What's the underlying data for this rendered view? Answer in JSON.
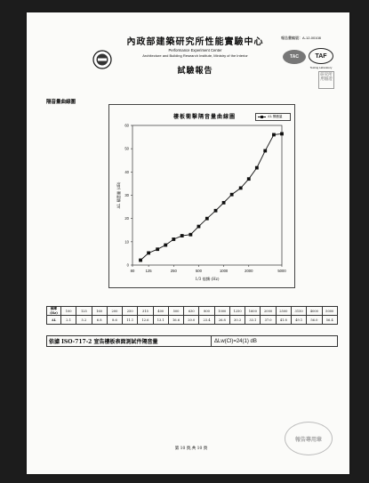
{
  "header": {
    "title": "內政部建築研究所性能實驗中心",
    "subtitle_en_1": "Performance Experiment Center",
    "subtitle_en_2": "Architecture and Building Research Institute, Ministry of the Interior",
    "report_title": "試驗報告",
    "report_no": "報告書編號：A-12-00108",
    "logo_tac": "TAC",
    "logo_taf": "TAF",
    "logo_taf_sub": "Testing Laboratory",
    "stamp_square": "研究所 用驗證"
  },
  "section_label": "隔音量曲線圖",
  "chart_data": {
    "type": "line",
    "title": "樓板衝擊隔音量曲線圖",
    "legend": [
      "ΔL 隔音量"
    ],
    "xlabel": "1/3 倍頻 (Hz)",
    "ylabel": "ΔL 隔音量 (dB)",
    "xscale": "log",
    "x_tick_labels": [
      "80",
      "125",
      "250",
      "500",
      "1000",
      "2000",
      "5000"
    ],
    "x_tick_values": [
      80,
      125,
      250,
      500,
      1000,
      2000,
      5000
    ],
    "ylim": [
      0,
      60
    ],
    "y_ticks": [
      0,
      10,
      20,
      30,
      40,
      50,
      60
    ],
    "series": [
      {
        "name": "ΔL 隔音量",
        "x": [
          100,
          125,
          160,
          200,
          250,
          315,
          400,
          500,
          630,
          800,
          1000,
          1250,
          1600,
          2000,
          2500,
          3150,
          4000,
          5000
        ],
        "values": [
          2.1,
          5.2,
          6.8,
          8.6,
          11.1,
          12.6,
          13.1,
          16.6,
          20.0,
          23.4,
          26.8,
          30.3,
          33.1,
          37.0,
          41.8,
          49.1,
          56.0,
          56.4
        ]
      }
    ]
  },
  "table": {
    "freq_header": "頻率 (Hz)",
    "delta_header": "ΔL",
    "freqs": [
      "100",
      "125",
      "160",
      "200",
      "250",
      "315",
      "400",
      "500",
      "630",
      "800",
      "1000",
      "1250",
      "1600",
      "2000",
      "2500",
      "3150",
      "4000",
      "5000"
    ],
    "deltas": [
      "2.1",
      "5.2",
      "6.8",
      "8.6",
      "11.1",
      "12.6",
      "13.1",
      "16.6",
      "20.0",
      "23.4",
      "26.8",
      "30.3",
      "33.1",
      "37.0",
      "41.8",
      "49.1",
      "56.0",
      "56.4"
    ]
  },
  "iso_line": {
    "left": "依據 ISO-717-2 宣告樓板表面測試件隔音量",
    "right": "ΔLw(Cl)=24(1) dB"
  },
  "page_number": "第 10 頁,共 10 頁",
  "stamp_round": "報告專用章"
}
